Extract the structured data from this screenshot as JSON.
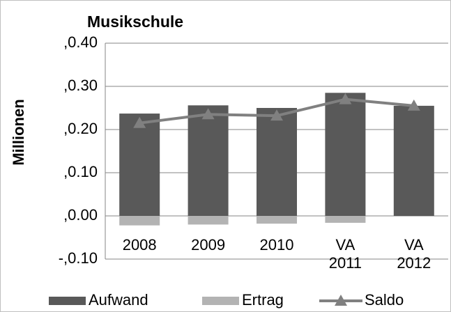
{
  "chart_data": {
    "type": "bar",
    "title": "Musikschule",
    "y_label": "Millionen",
    "categories": [
      "2008",
      "2009",
      "2010",
      "VA 2011",
      "VA 2012"
    ],
    "series": [
      {
        "name": "Aufwand",
        "type": "bar",
        "color": "#595959",
        "values": [
          0.237,
          0.256,
          0.25,
          0.285,
          0.255
        ]
      },
      {
        "name": "Ertrag",
        "type": "bar",
        "color": "#b3b3b3",
        "values": [
          -0.022,
          -0.02,
          -0.018,
          -0.016,
          0
        ]
      },
      {
        "name": "Saldo",
        "type": "line",
        "color": "#808080",
        "values": [
          0.215,
          0.235,
          0.232,
          0.27,
          0.255
        ]
      }
    ],
    "ylim": [
      -0.1,
      0.4
    ],
    "yticks": [
      {
        "value": 0.4,
        "label": ",0.40"
      },
      {
        "value": 0.3,
        "label": ",0.30"
      },
      {
        "value": 0.2,
        "label": ",0.20"
      },
      {
        "value": 0.1,
        "label": ",0.10"
      },
      {
        "value": 0,
        "label": ",0.00"
      },
      {
        "value": -0.1,
        "label": "-,0.10"
      }
    ],
    "grid": true,
    "legend": "bottom"
  }
}
